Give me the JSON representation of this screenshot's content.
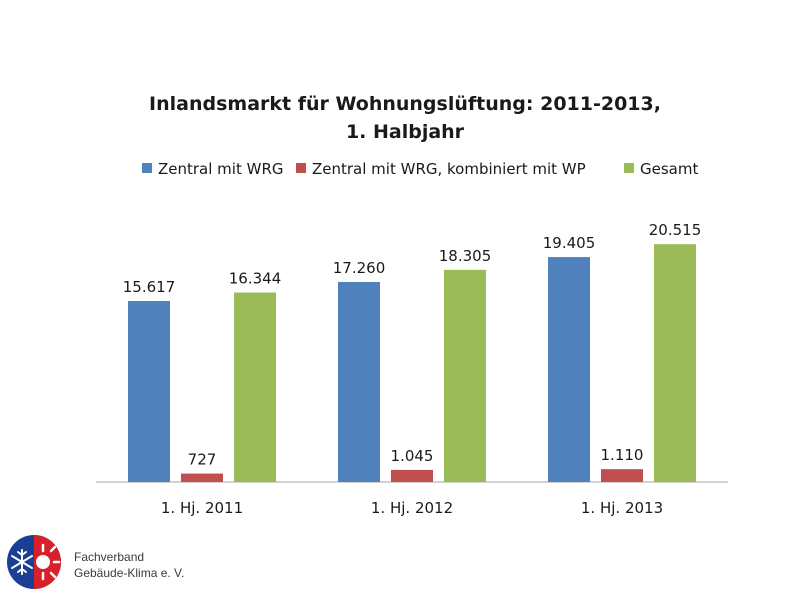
{
  "chart_data": {
    "type": "bar",
    "title_lines": [
      "Inlandsmarkt für Wohnungslüftung: 2011-2013,",
      "1. Halbjahr"
    ],
    "categories": [
      "1. Hj. 2011",
      "1. Hj. 2012",
      "1. Hj. 2013"
    ],
    "series": [
      {
        "name": "Zentral mit WRG",
        "color": "#4f81bd",
        "values": [
          15617,
          17260,
          19405
        ],
        "labels": [
          "15.617",
          "17.260",
          "19.405"
        ]
      },
      {
        "name": "Zentral mit WRG, kombiniert mit WP",
        "color": "#c0504d",
        "values": [
          727,
          1045,
          1110
        ],
        "labels": [
          "727",
          "1.045",
          "1.110"
        ]
      },
      {
        "name": "Gesamt",
        "color": "#9bbb59",
        "values": [
          16344,
          18305,
          20515
        ],
        "labels": [
          "16.344",
          "18.305",
          "20.515"
        ]
      }
    ],
    "ylim": [
      0,
      22000
    ],
    "legend_position": "top",
    "grid": false
  },
  "footer": {
    "org_line1": "Fachverband",
    "org_line2": "Gebäude-Klima e. V.",
    "logo_icon": "snowflake-sun-logo-icon"
  }
}
